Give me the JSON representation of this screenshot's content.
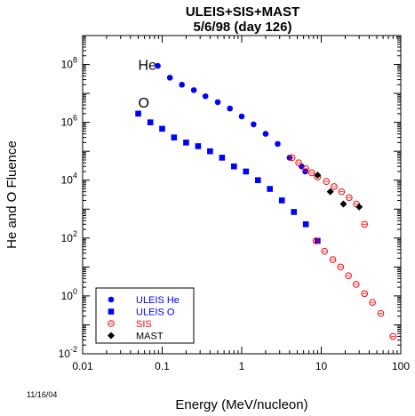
{
  "chart_data": {
    "type": "scatter",
    "title": "ULEIS+SIS+MAST",
    "subtitle": "5/6/98 (day 126)",
    "xlabel": "Energy (MeV/nucleon)",
    "ylabel": "He and O Fluence",
    "x_scale": "log",
    "y_scale": "log",
    "xlim": [
      0.01,
      100
    ],
    "ylim": [
      0.01,
      1000000000
    ],
    "x_ticks": [
      "0.01",
      "0.1",
      "1",
      "10",
      "100"
    ],
    "y_ticks": [
      {
        "base": "10",
        "exp": "-2"
      },
      {
        "base": "10",
        "exp": "0"
      },
      {
        "base": "10",
        "exp": "2"
      },
      {
        "base": "10",
        "exp": "4"
      },
      {
        "base": "10",
        "exp": "6"
      },
      {
        "base": "10",
        "exp": "8"
      }
    ],
    "annotations": [
      {
        "text": "He",
        "x": 0.05,
        "y": 100000000
      },
      {
        "text": "O",
        "x": 0.05,
        "y": 5000000
      }
    ],
    "legend_position": "bottom-left",
    "series": [
      {
        "name": "ULEIS He",
        "color": "#0000ff",
        "marker": "circle",
        "x": [
          0.088,
          0.125,
          0.177,
          0.25,
          0.35,
          0.5,
          0.71,
          1.0,
          1.41,
          2.0,
          2.83,
          4.0,
          5.66,
          6.3
        ],
        "y": [
          90000000,
          35000000,
          20000000,
          13000000,
          8000000,
          5000000,
          3000000,
          1600000,
          850000,
          400000,
          180000,
          60000,
          30000,
          20000
        ]
      },
      {
        "name": "ULEIS O",
        "color": "#0000ff",
        "marker": "square",
        "x": [
          0.05,
          0.071,
          0.1,
          0.141,
          0.2,
          0.283,
          0.4,
          0.566,
          0.8,
          1.13,
          1.6,
          2.26,
          3.2,
          4.53,
          6.4,
          9.0
        ],
        "y": [
          2000000,
          1000000,
          600000,
          300000,
          200000,
          150000,
          100000,
          60000,
          30000,
          20000,
          10000,
          5000,
          2000,
          800,
          300,
          80
        ]
      },
      {
        "name": "SIS",
        "color": "#ff0000",
        "marker": "open-circle",
        "x": [
          4.3,
          5.2,
          6.4,
          7.6,
          9.0,
          11.6,
          14.5,
          18.0,
          22.4,
          27.7,
          35.0,
          8.6,
          11.0,
          14.0,
          17.5,
          22.0,
          27.5,
          35.0,
          44.0,
          56.0,
          80.0
        ],
        "y": [
          60000,
          40000,
          25000,
          18000,
          13000,
          9000,
          6000,
          4000,
          2500,
          1500,
          300,
          80,
          35,
          18,
          10,
          5,
          2.5,
          1.2,
          0.6,
          0.25,
          0.04
        ]
      },
      {
        "name": "MAST",
        "color": "#000000",
        "marker": "diamond",
        "x": [
          9.0,
          13.0,
          19.0,
          30.0
        ],
        "y": [
          15000,
          4000,
          1500,
          1200
        ]
      }
    ]
  },
  "footer_date": "11/16/04"
}
